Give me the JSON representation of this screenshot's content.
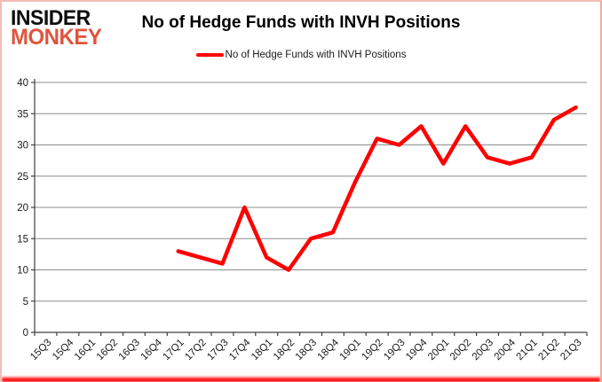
{
  "logo": {
    "line1": "INSIDER",
    "line2": "MONKEY"
  },
  "header": {
    "title": "No of Hedge Funds with INVH Positions"
  },
  "legend": {
    "label": "No of Hedge Funds with INVH Positions"
  },
  "colors": {
    "series_line": "#ff0000",
    "logo_accent": "#e0543e",
    "gridline": "#8c8c8c",
    "axis": "#404040",
    "tick_text": "#1a1a1a",
    "border_glow": "#ff0000"
  },
  "chart_data": {
    "type": "line",
    "title": "No of Hedge Funds with INVH Positions",
    "categories": [
      "15Q3",
      "15Q4",
      "16Q1",
      "16Q2",
      "16Q3",
      "16Q4",
      "17Q1",
      "17Q2",
      "17Q3",
      "17Q4",
      "18Q1",
      "18Q2",
      "18Q3",
      "18Q4",
      "19Q1",
      "19Q2",
      "19Q3",
      "19Q4",
      "20Q1",
      "20Q2",
      "20Q3",
      "20Q4",
      "21Q1",
      "21Q2",
      "21Q3"
    ],
    "series": [
      {
        "name": "No of Hedge Funds with INVH Positions",
        "color": "#ff0000",
        "values": [
          null,
          null,
          null,
          null,
          null,
          null,
          13,
          12,
          11,
          20,
          12,
          10,
          15,
          16,
          24,
          31,
          30,
          33,
          27,
          33,
          28,
          27,
          28,
          34,
          36
        ]
      }
    ],
    "xlabel": "",
    "ylabel": "",
    "ylim": [
      0,
      40
    ],
    "ytick_step": 5,
    "grid": true,
    "legend_position": "top"
  }
}
